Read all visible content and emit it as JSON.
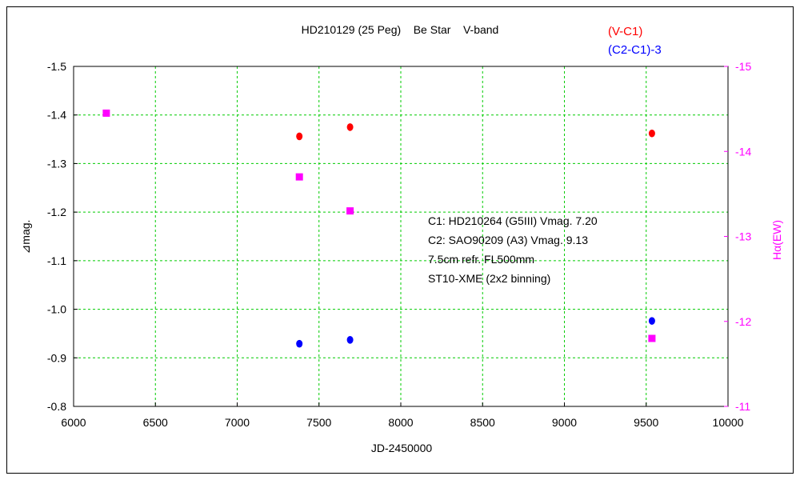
{
  "colors": {
    "v_c1": "#ff0000",
    "c2_c1": "#0000ff",
    "halpha": "#ff00ff",
    "grid": "#00cc00"
  },
  "chart_data": {
    "type": "scatter",
    "title": "HD210129 (25 Peg)    Be Star    V-band",
    "xlabel": "JD-2450000",
    "ylabel": "⊿mag.",
    "y2label": "Hα(EW)",
    "xlim": [
      6000,
      10000
    ],
    "ylim": [
      -0.8,
      -1.5
    ],
    "y2lim": [
      -11,
      -15
    ],
    "x_ticks": [
      6000,
      6500,
      7000,
      7500,
      8000,
      8500,
      9000,
      9500,
      10000
    ],
    "y_ticks": [
      "-1.5",
      "-1.4",
      "-1.3",
      "-1.2",
      "-1.1",
      "-1.0",
      "-0.9",
      "-0.8"
    ],
    "y2_ticks": [
      "-15",
      "-14",
      "-13",
      "-12",
      "-11"
    ],
    "grid": true,
    "legend_position": "top-right",
    "legend": [
      "(V-C1)",
      "(C2-C1)-3"
    ],
    "series": [
      {
        "name": "(V-C1)",
        "axis": "left",
        "marker": "circle",
        "points": [
          [
            7380,
            -1.356
          ],
          [
            7690,
            -1.375
          ],
          [
            9535,
            -1.362
          ]
        ]
      },
      {
        "name": "(C2-C1)-3",
        "axis": "left",
        "marker": "circle",
        "points": [
          [
            7380,
            -0.929
          ],
          [
            7690,
            -0.937
          ],
          [
            9535,
            -0.976
          ]
        ]
      },
      {
        "name": "Hα(EW)",
        "axis": "right",
        "marker": "square",
        "points": [
          [
            6200,
            -14.45
          ],
          [
            7380,
            -13.7
          ],
          [
            7690,
            -13.3
          ],
          [
            9535,
            -11.8
          ]
        ]
      }
    ],
    "annotation": [
      "C1: HD210264 (G5III)  Vmag. 7.20",
      "C2: SAO90209 (A3) Vmag. 9.13",
      "7.5cm refr. FL500mm",
      "ST10-XME (2x2 binning)"
    ]
  }
}
